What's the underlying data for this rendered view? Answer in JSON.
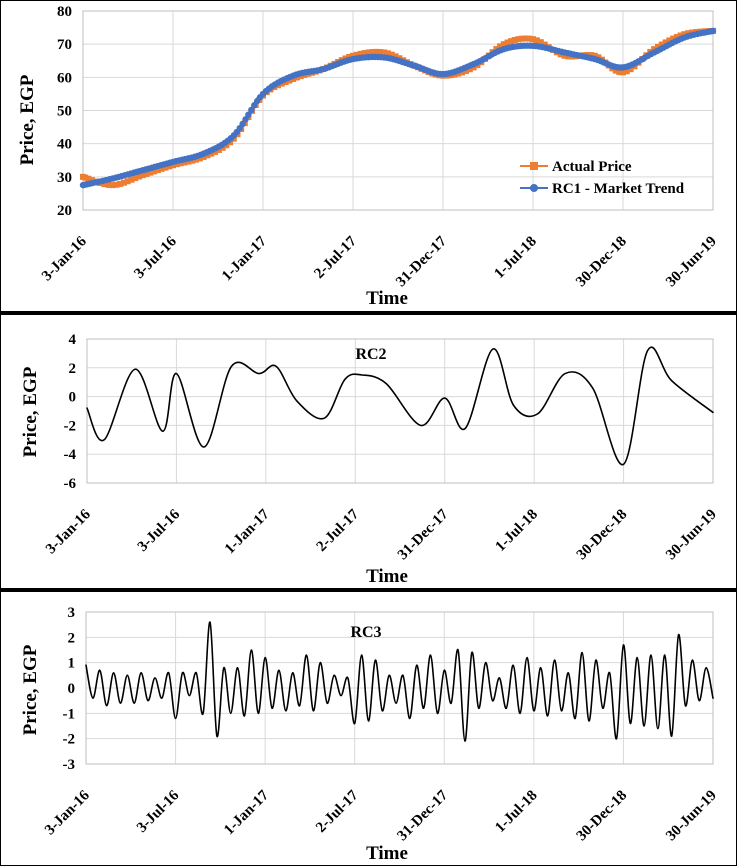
{
  "colors": {
    "actual": "#ED7D31",
    "trend": "#4472C4",
    "component": "#000000",
    "grid": "#d9d9d9"
  },
  "x_ticks": [
    "3-Jan-16",
    "3-Jul-16",
    "1-Jan-17",
    "2-Jul-17",
    "31-Dec-17",
    "1-Jul-18",
    "30-Dec-18",
    "30-Jun-19"
  ],
  "chart_data": [
    {
      "type": "line",
      "title": "",
      "xlabel": "Time",
      "ylabel": "Price, EGP",
      "ylim": [
        20,
        80
      ],
      "y_ticks": [
        "20",
        "30",
        "40",
        "50",
        "60",
        "70",
        "80"
      ],
      "grid": true,
      "legend_position": "bottom-right",
      "x": [
        "2016-01-03",
        "2016-03-03",
        "2016-05-03",
        "2016-07-03",
        "2016-09-03",
        "2016-11-03",
        "2017-01-01",
        "2017-03-03",
        "2017-05-03",
        "2017-07-02",
        "2017-09-03",
        "2017-11-03",
        "2017-12-31",
        "2018-03-03",
        "2018-05-03",
        "2018-07-01",
        "2018-09-03",
        "2018-11-03",
        "2018-12-30",
        "2019-03-03",
        "2019-05-03",
        "2019-06-30"
      ],
      "series": [
        {
          "name": "Actual Price",
          "marker": "square",
          "values": [
            30.0,
            27.5,
            30.5,
            33.5,
            36.0,
            41.5,
            54.5,
            59.5,
            62.5,
            66.5,
            67.5,
            63.5,
            60.5,
            63.0,
            70.0,
            71.5,
            66.5,
            66.5,
            61.5,
            68.5,
            73.0,
            74.0
          ]
        },
        {
          "name": "RC1 - Market Trend",
          "marker": "circle",
          "values": [
            27.5,
            29.5,
            32.0,
            34.5,
            37.0,
            42.5,
            55.0,
            60.5,
            62.5,
            65.5,
            66.0,
            63.5,
            61.0,
            64.0,
            68.5,
            69.5,
            67.5,
            65.5,
            63.0,
            67.5,
            72.0,
            74.0
          ]
        }
      ]
    },
    {
      "type": "line",
      "title": "RC2",
      "xlabel": "Time",
      "ylabel": "Price, EGP",
      "ylim": [
        -6,
        4
      ],
      "y_ticks": [
        "-6",
        "-4",
        "-2",
        "0",
        "2",
        "4"
      ],
      "grid": true,
      "x": [
        "2016-01-03",
        "2016-02-07",
        "2016-04-10",
        "2016-06-05",
        "2016-07-03",
        "2016-08-28",
        "2016-10-23",
        "2016-12-18",
        "2017-01-22",
        "2017-03-05",
        "2017-04-30",
        "2017-06-11",
        "2017-07-16",
        "2017-09-03",
        "2017-11-12",
        "2017-12-31",
        "2018-02-11",
        "2018-04-08",
        "2018-05-20",
        "2018-07-08",
        "2018-09-02",
        "2018-10-28",
        "2018-12-30",
        "2019-02-17",
        "2019-04-07",
        "2019-06-30"
      ],
      "series": [
        {
          "name": "RC2",
          "values": [
            -0.8,
            -3.0,
            1.9,
            -2.4,
            1.6,
            -3.5,
            2.1,
            1.6,
            2.1,
            -0.3,
            -1.5,
            1.2,
            1.5,
            0.9,
            -2.0,
            -0.1,
            -2.2,
            3.3,
            -0.6,
            -1.2,
            1.6,
            0.6,
            -4.7,
            3.2,
            1.1,
            -1.1
          ]
        }
      ]
    },
    {
      "type": "line",
      "title": "RC3",
      "xlabel": "Time",
      "ylabel": "Price, EGP",
      "ylim": [
        -3,
        3
      ],
      "y_ticks": [
        "-3",
        "-2",
        "-1",
        "0",
        "1",
        "2",
        "3"
      ],
      "grid": true,
      "x": [
        "2016-01-03",
        "2016-01-17",
        "2016-01-31",
        "2016-02-14",
        "2016-02-28",
        "2016-03-13",
        "2016-03-27",
        "2016-04-10",
        "2016-04-24",
        "2016-05-08",
        "2016-05-22",
        "2016-06-05",
        "2016-06-19",
        "2016-07-03",
        "2016-07-17",
        "2016-07-31",
        "2016-08-14",
        "2016-08-28",
        "2016-09-11",
        "2016-09-25",
        "2016-10-09",
        "2016-10-23",
        "2016-11-06",
        "2016-11-20",
        "2016-12-04",
        "2016-12-18",
        "2017-01-01",
        "2017-01-15",
        "2017-01-29",
        "2017-02-12",
        "2017-02-26",
        "2017-03-12",
        "2017-03-26",
        "2017-04-09",
        "2017-04-23",
        "2017-05-07",
        "2017-05-21",
        "2017-06-04",
        "2017-06-18",
        "2017-07-02",
        "2017-07-16",
        "2017-07-30",
        "2017-08-13",
        "2017-08-27",
        "2017-09-10",
        "2017-09-24",
        "2017-10-08",
        "2017-10-22",
        "2017-11-05",
        "2017-11-19",
        "2017-12-03",
        "2017-12-17",
        "2017-12-31",
        "2018-01-14",
        "2018-01-28",
        "2018-02-11",
        "2018-02-25",
        "2018-03-11",
        "2018-03-25",
        "2018-04-08",
        "2018-04-22",
        "2018-05-06",
        "2018-05-20",
        "2018-06-03",
        "2018-06-17",
        "2018-07-01",
        "2018-07-15",
        "2018-07-29",
        "2018-08-12",
        "2018-08-26",
        "2018-09-09",
        "2018-09-23",
        "2018-10-07",
        "2018-10-21",
        "2018-11-04",
        "2018-11-18",
        "2018-12-02",
        "2018-12-16",
        "2018-12-30",
        "2019-01-13",
        "2019-01-27",
        "2019-02-10",
        "2019-02-24",
        "2019-03-10",
        "2019-03-24",
        "2019-04-07",
        "2019-04-21",
        "2019-05-05",
        "2019-05-19",
        "2019-06-02",
        "2019-06-16",
        "2019-06-30"
      ],
      "series": [
        {
          "name": "RC3",
          "values": [
            0.9,
            -0.4,
            0.7,
            -0.7,
            0.6,
            -0.6,
            0.5,
            -0.6,
            0.6,
            -0.5,
            0.4,
            -0.4,
            0.6,
            -1.2,
            0.6,
            -0.3,
            0.6,
            -1.0,
            2.6,
            -1.9,
            0.8,
            -1.0,
            0.8,
            -1.1,
            1.5,
            -1.0,
            1.2,
            -0.8,
            0.7,
            -0.9,
            0.6,
            -0.7,
            1.3,
            -0.9,
            1.0,
            -0.6,
            0.5,
            -0.3,
            0.4,
            -1.4,
            1.3,
            -1.3,
            1.1,
            -0.9,
            0.5,
            -0.6,
            0.5,
            -1.2,
            0.9,
            -0.8,
            1.3,
            -1.0,
            0.7,
            -0.6,
            1.5,
            -2.1,
            1.4,
            -0.8,
            1.0,
            -0.5,
            0.4,
            -0.8,
            0.9,
            -1.0,
            1.2,
            -0.9,
            0.8,
            -1.1,
            1.1,
            -0.9,
            0.6,
            -1.2,
            1.4,
            -1.3,
            1.1,
            -0.8,
            0.6,
            -2.0,
            1.7,
            -1.4,
            1.2,
            -1.5,
            1.3,
            -1.6,
            1.3,
            -1.9,
            2.1,
            -0.7,
            1.1,
            -0.5,
            0.8,
            -0.4
          ]
        }
      ]
    }
  ]
}
